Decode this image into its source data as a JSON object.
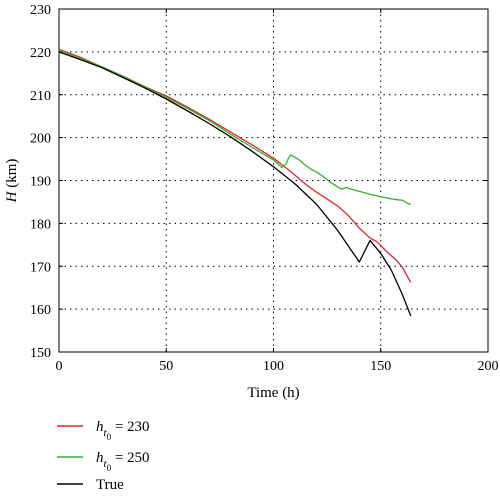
{
  "chart_data": {
    "type": "line",
    "xlabel": "Time (h)",
    "ylabel_var": "H",
    "ylabel_unit": " (km)",
    "xlim": [
      0,
      200
    ],
    "ylim": [
      150,
      230
    ],
    "xticks": [
      0,
      50,
      100,
      150,
      200
    ],
    "yticks": [
      150,
      160,
      170,
      180,
      190,
      200,
      210,
      220,
      230
    ],
    "grid": true,
    "legend_position": "below-left",
    "series": [
      {
        "name": "h_t0 = 230",
        "legend_var": "h",
        "legend_sub1": "t",
        "legend_sub2": "0",
        "legend_rest": " = 230",
        "color": "#e8242a",
        "x": [
          0,
          10,
          20,
          30,
          40,
          50,
          60,
          70,
          80,
          90,
          100,
          108,
          115,
          120,
          125,
          130,
          135,
          140,
          145,
          148,
          150,
          153,
          156,
          158,
          160,
          162,
          164
        ],
        "y": [
          220.6,
          218.7,
          216.5,
          214.3,
          211.9,
          209.7,
          207.1,
          204.3,
          201.3,
          198.3,
          195.2,
          192.1,
          189.1,
          187.3,
          185.7,
          184.0,
          181.8,
          178.9,
          176.6,
          175.8,
          174.8,
          173.3,
          172.0,
          171.0,
          169.8,
          168.0,
          166.2
        ]
      },
      {
        "name": "h_t0 = 250",
        "legend_var": "h",
        "legend_sub1": "t",
        "legend_sub2": "0",
        "legend_rest": " = 250",
        "color": "#33b033",
        "x": [
          0,
          10,
          20,
          30,
          40,
          50,
          60,
          70,
          80,
          90,
          100,
          104,
          106,
          107,
          108,
          110,
          112,
          115,
          118,
          120,
          123,
          126,
          129,
          131,
          132,
          134,
          136,
          140,
          145,
          150,
          155,
          158,
          160,
          162,
          164
        ],
        "y": [
          220.4,
          218.5,
          216.5,
          214.3,
          211.8,
          209.4,
          206.8,
          204.0,
          200.8,
          197.7,
          194.8,
          193.0,
          194.0,
          195.2,
          196.0,
          195.4,
          194.8,
          193.5,
          192.5,
          192.0,
          191.0,
          189.8,
          188.8,
          188.2,
          188.0,
          188.4,
          188.0,
          187.5,
          186.8,
          186.2,
          185.7,
          185.5,
          185.4,
          184.8,
          184.4
        ]
      },
      {
        "name": "True",
        "legend_var": "",
        "legend_sub1": "",
        "legend_sub2": "",
        "legend_rest": "True",
        "color": "#000000",
        "x": [
          0,
          10,
          20,
          30,
          40,
          50,
          60,
          70,
          80,
          90,
          100,
          110,
          120,
          130,
          140,
          145,
          150,
          155,
          160,
          164
        ],
        "y": [
          220.0,
          218.2,
          216.3,
          214.0,
          211.6,
          209.0,
          206.2,
          203.3,
          200.2,
          196.8,
          193.2,
          189.2,
          184.5,
          178.3,
          171.0,
          176.0,
          173.0,
          169.0,
          163.5,
          158.4
        ]
      }
    ]
  }
}
